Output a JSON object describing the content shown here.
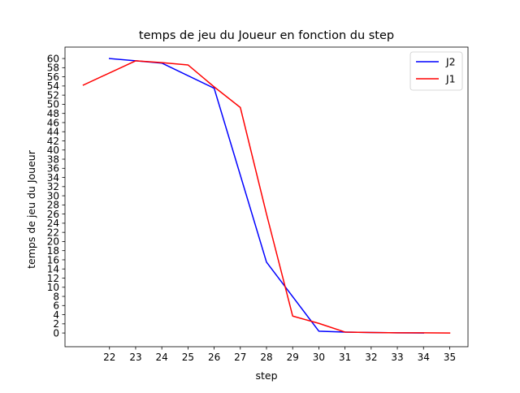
{
  "chart_data": {
    "type": "line",
    "title": "temps de jeu du Joueur en fonction du step",
    "xlabel": "step",
    "ylabel": "temps de jeu du Joueur",
    "xlim": [
      20.3,
      35.7
    ],
    "ylim": [
      -3,
      62.5
    ],
    "xticks": [
      22,
      23,
      24,
      25,
      26,
      27,
      28,
      29,
      30,
      31,
      32,
      33,
      34,
      35
    ],
    "yticks": [
      0,
      2,
      4,
      6,
      8,
      10,
      12,
      14,
      16,
      18,
      20,
      22,
      24,
      26,
      28,
      30,
      32,
      34,
      36,
      38,
      40,
      42,
      44,
      46,
      48,
      50,
      52,
      54,
      56,
      58,
      60
    ],
    "grid": false,
    "legend_position": "top-right",
    "series": [
      {
        "name": "J2",
        "color": "#0000ff",
        "x": [
          22,
          23,
          24,
          26,
          28,
          30,
          31,
          32,
          33,
          34
        ],
        "y": [
          60,
          59.5,
          59,
          53.5,
          15.5,
          0.4,
          0.2,
          0.1,
          0.05,
          0
        ]
      },
      {
        "name": "J1",
        "color": "#ff0000",
        "x": [
          21,
          23,
          24,
          25,
          26,
          27,
          28,
          29,
          30,
          31,
          32,
          33,
          34,
          35
        ],
        "y": [
          54.2,
          59.5,
          59.1,
          58.6,
          53.8,
          49.3,
          26,
          3.7,
          2.1,
          0.2,
          0.1,
          0.05,
          0.05,
          0
        ]
      }
    ]
  }
}
